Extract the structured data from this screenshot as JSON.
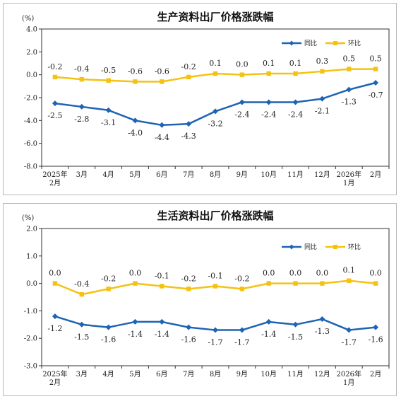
{
  "chart_data": [
    {
      "type": "line",
      "title": "生产资料出厂价格涨跌幅",
      "unit": "(%)",
      "x": [
        "2025年\n2月",
        "3月",
        "4月",
        "5月",
        "6月",
        "7月",
        "8月",
        "9月",
        "10月",
        "11月",
        "12月",
        "2026年\n1月",
        "2月"
      ],
      "ylim": [
        -8.0,
        4.0
      ],
      "yticks": [
        4.0,
        2.0,
        0.0,
        -2.0,
        -4.0,
        -6.0,
        -8.0
      ],
      "ytick_labels": [
        "4.0",
        "2.0",
        "0.0",
        "-2.0",
        "-4.0",
        "-6.0",
        "-8.0"
      ],
      "legend_position": "top-right",
      "series": [
        {
          "name": "同比",
          "color": "#1E64B4",
          "marker": "diamond",
          "values": [
            -2.5,
            -2.8,
            -3.1,
            -4.0,
            -4.4,
            -4.3,
            -3.2,
            -2.4,
            -2.4,
            -2.4,
            -2.1,
            -1.3,
            -0.7
          ],
          "labels": [
            "-2.5",
            "-2.8",
            "-3.1",
            "-4.0",
            "-4.4",
            "-4.3",
            "-3.2",
            "-2.4",
            "-2.4",
            "-2.4",
            "-2.1",
            "-1.3",
            "-0.7"
          ]
        },
        {
          "name": "环比",
          "color": "#F5C211",
          "marker": "square",
          "values": [
            -0.2,
            -0.4,
            -0.5,
            -0.6,
            -0.6,
            -0.2,
            0.1,
            0.0,
            0.1,
            0.1,
            0.3,
            0.5,
            0.5
          ],
          "labels": [
            "-0.2",
            "-0.4",
            "-0.5",
            "-0.6",
            "-0.6",
            "-0.2",
            "0.1",
            "0.0",
            "0.1",
            "0.1",
            "0.3",
            "0.5",
            "0.5"
          ]
        }
      ]
    },
    {
      "type": "line",
      "title": "生活资料出厂价格涨跌幅",
      "unit": "(%)",
      "x": [
        "2025年\n2月",
        "3月",
        "4月",
        "5月",
        "6月",
        "7月",
        "8月",
        "9月",
        "10月",
        "11月",
        "12月",
        "2026年\n1月",
        "2月"
      ],
      "ylim": [
        -3.0,
        2.0
      ],
      "yticks": [
        2.0,
        1.0,
        0.0,
        -1.0,
        -2.0,
        -3.0
      ],
      "ytick_labels": [
        "2.0",
        "1.0",
        "0.0",
        "-1.0",
        "-2.0",
        "-3.0"
      ],
      "legend_position": "top-right",
      "series": [
        {
          "name": "同比",
          "color": "#1E64B4",
          "marker": "diamond",
          "values": [
            -1.2,
            -1.5,
            -1.6,
            -1.4,
            -1.4,
            -1.6,
            -1.7,
            -1.7,
            -1.4,
            -1.5,
            -1.3,
            -1.7,
            -1.6
          ],
          "labels": [
            "-1.2",
            "-1.5",
            "-1.6",
            "-1.4",
            "-1.4",
            "-1.6",
            "-1.7",
            "-1.7",
            "-1.4",
            "-1.5",
            "-1.3",
            "-1.7",
            "-1.6"
          ]
        },
        {
          "name": "环比",
          "color": "#F5C211",
          "marker": "square",
          "values": [
            0.0,
            -0.4,
            -0.2,
            0.0,
            -0.1,
            -0.2,
            -0.1,
            -0.2,
            0.0,
            0.0,
            0.0,
            0.1,
            0.0
          ],
          "labels": [
            "0.0",
            "-0.4",
            "-0.2",
            "0.0",
            "-0.1",
            "-0.2",
            "-0.1",
            "-0.2",
            "0.0",
            "0.0",
            "0.0",
            "0.1",
            "0.0"
          ]
        }
      ]
    }
  ]
}
